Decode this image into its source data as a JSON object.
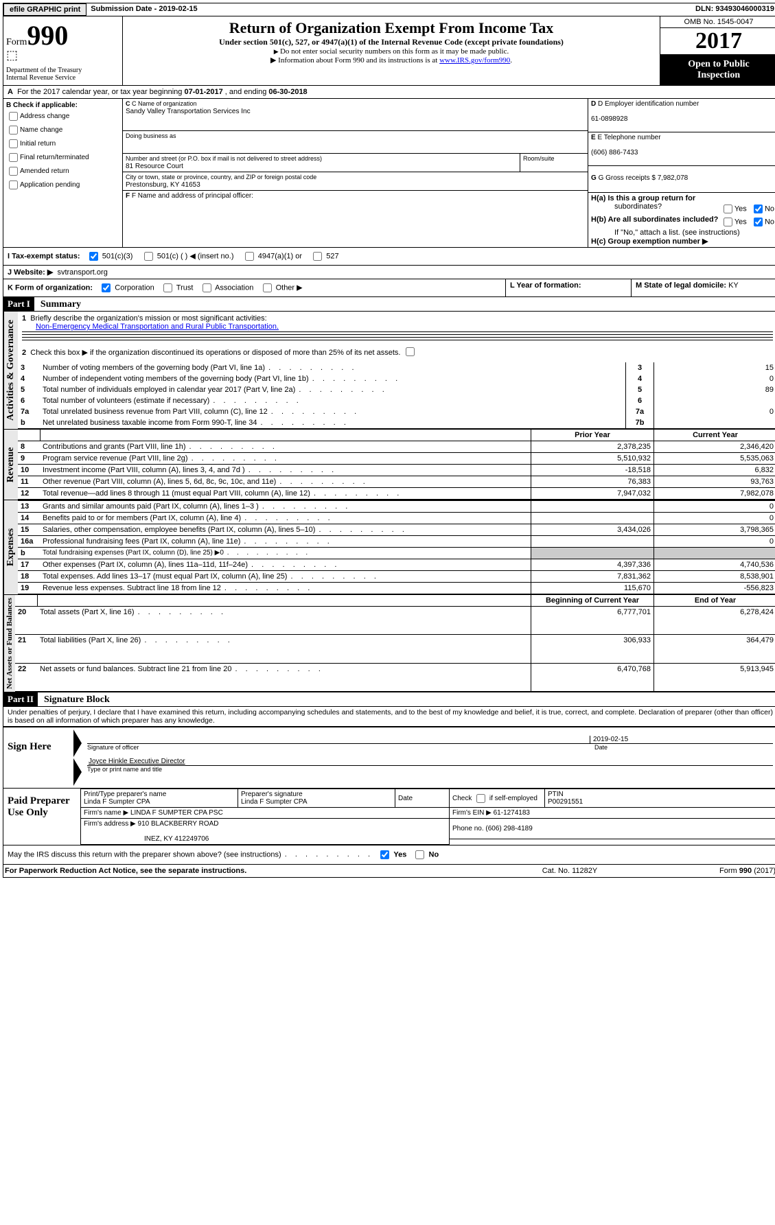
{
  "topbar": {
    "efile_btn": "efile GRAPHIC print",
    "sub_label": "Submission Date - ",
    "sub_date": "2019-02-15",
    "dln_label": "DLN: ",
    "dln": "93493046000319"
  },
  "header": {
    "form_word": "Form",
    "form_no": "990",
    "dept1": "Department of the Treasury",
    "dept2": "Internal Revenue Service",
    "title": "Return of Organization Exempt From Income Tax",
    "subtitle": "Under section 501(c), 527, or 4947(a)(1) of the Internal Revenue Code (except private foundations)",
    "note1": "Do not enter social security numbers on this form as it may be made public.",
    "note2_pre": "Information about Form 990 and its instructions is at ",
    "note2_link": "www.IRS.gov/form990",
    "omb": "OMB No. 1545-0047",
    "year": "2017",
    "inspect1": "Open to Public",
    "inspect2": "Inspection"
  },
  "rowA": {
    "label": "A",
    "text_pre": "For the 2017 calendar year, or tax year beginning ",
    "begin": "07-01-2017",
    "mid": " , and ending ",
    "end": "06-30-2018"
  },
  "colB": {
    "hdr": "B Check if applicable:",
    "items": [
      "Address change",
      "Name change",
      "Initial return",
      "Final return/terminated",
      "Amended return",
      "Application pending"
    ]
  },
  "colC": {
    "name_lbl": "C Name of organization",
    "name": "Sandy Valley Transportation Services Inc",
    "dba_lbl": "Doing business as",
    "dba": "",
    "street_lbl": "Number and street (or P.O. box if mail is not delivered to street address)",
    "room_lbl": "Room/suite",
    "street": "81 Resource Court",
    "city_lbl": "City or town, state or province, country, and ZIP or foreign postal code",
    "city": "Prestonsburg, KY  41653",
    "officer_lbl": "F Name and address of principal officer:"
  },
  "colD": {
    "ein_lbl": "D Employer identification number",
    "ein": "61-0898928",
    "tel_lbl": "E Telephone number",
    "tel": "(606) 886-7433",
    "gross_lbl": "G Gross receipts $ ",
    "gross": "7,982,078"
  },
  "rowH": {
    "ha": "H(a)  Is this a group return for",
    "ha2": "subordinates?",
    "hb": "H(b)  Are all subordinates included?",
    "hb_note": "If \"No,\" attach a list. (see instructions)",
    "hc": "H(c)  Group exemption number ▶",
    "yes": "Yes",
    "no": "No"
  },
  "rowI": {
    "lbl": "I  Tax-exempt status:",
    "o1": "501(c)(3)",
    "o2": "501(c) (  ) ◀ (insert no.)",
    "o3": "4947(a)(1) or",
    "o4": "527"
  },
  "rowJ": {
    "lbl": "J  Website: ▶",
    "val": "svtransport.org"
  },
  "rowK": {
    "lbl": "K Form of organization:",
    "opts": [
      "Corporation",
      "Trust",
      "Association",
      "Other ▶"
    ],
    "L_lbl": "L Year of formation:",
    "L_val": "",
    "M_lbl": "M State of legal domicile: ",
    "M_val": "KY"
  },
  "part1": {
    "hdr": "Part I",
    "title": "Summary",
    "line1_lbl": "Briefly describe the organization's mission or most significant activities:",
    "mission": "Non-Emergency Medical Transportation and Rural Public Transportation.",
    "line2": "Check this box ▶         if the organization discontinued its operations or disposed of more than 25% of its net assets.",
    "cols": [
      "Prior Year",
      "Current Year"
    ],
    "col_begin": "Beginning of Current Year",
    "col_end": "End of Year",
    "sections": {
      "gov": "Activities & Governance",
      "rev": "Revenue",
      "exp": "Expenses",
      "net": "Net Assets or Fund Balances"
    },
    "lines_top": [
      {
        "n": "3",
        "t": "Number of voting members of the governing body (Part VI, line 1a)",
        "box": "3",
        "v": "15"
      },
      {
        "n": "4",
        "t": "Number of independent voting members of the governing body (Part VI, line 1b)",
        "box": "4",
        "v": "0"
      },
      {
        "n": "5",
        "t": "Total number of individuals employed in calendar year 2017 (Part V, line 2a)",
        "box": "5",
        "v": "89"
      },
      {
        "n": "6",
        "t": "Total number of volunteers (estimate if necessary)",
        "box": "6",
        "v": ""
      },
      {
        "n": "7a",
        "t": "Total unrelated business revenue from Part VIII, column (C), line 12",
        "box": "7a",
        "v": "0"
      },
      {
        "n": "b",
        "t": "Net unrelated business taxable income from Form 990-T, line 34",
        "box": "7b",
        "v": ""
      }
    ],
    "lines_rev": [
      {
        "n": "8",
        "t": "Contributions and grants (Part VIII, line 1h)",
        "p": "2,378,235",
        "c": "2,346,420"
      },
      {
        "n": "9",
        "t": "Program service revenue (Part VIII, line 2g)",
        "p": "5,510,932",
        "c": "5,535,063"
      },
      {
        "n": "10",
        "t": "Investment income (Part VIII, column (A), lines 3, 4, and 7d )",
        "p": "-18,518",
        "c": "6,832"
      },
      {
        "n": "11",
        "t": "Other revenue (Part VIII, column (A), lines 5, 6d, 8c, 9c, 10c, and 11e)",
        "p": "76,383",
        "c": "93,763"
      },
      {
        "n": "12",
        "t": "Total revenue—add lines 8 through 11 (must equal Part VIII, column (A), line 12)",
        "p": "7,947,032",
        "c": "7,982,078"
      }
    ],
    "lines_exp": [
      {
        "n": "13",
        "t": "Grants and similar amounts paid (Part IX, column (A), lines 1–3 )",
        "p": "",
        "c": "0"
      },
      {
        "n": "14",
        "t": "Benefits paid to or for members (Part IX, column (A), line 4)",
        "p": "",
        "c": "0"
      },
      {
        "n": "15",
        "t": "Salaries, other compensation, employee benefits (Part IX, column (A), lines 5–10)",
        "p": "3,434,026",
        "c": "3,798,365"
      },
      {
        "n": "16a",
        "t": "Professional fundraising fees (Part IX, column (A), line 11e)",
        "p": "",
        "c": "0"
      },
      {
        "n": "b",
        "t": "Total fundraising expenses (Part IX, column (D), line 25) ▶0",
        "p": "grey",
        "c": "grey"
      },
      {
        "n": "17",
        "t": "Other expenses (Part IX, column (A), lines 11a–11d, 11f–24e)",
        "p": "4,397,336",
        "c": "4,740,536"
      },
      {
        "n": "18",
        "t": "Total expenses. Add lines 13–17 (must equal Part IX, column (A), line 25)",
        "p": "7,831,362",
        "c": "8,538,901"
      },
      {
        "n": "19",
        "t": "Revenue less expenses. Subtract line 18 from line 12",
        "p": "115,670",
        "c": "-556,823"
      }
    ],
    "lines_net": [
      {
        "n": "20",
        "t": "Total assets (Part X, line 16)",
        "p": "6,777,701",
        "c": "6,278,424"
      },
      {
        "n": "21",
        "t": "Total liabilities (Part X, line 26)",
        "p": "306,933",
        "c": "364,479"
      },
      {
        "n": "22",
        "t": "Net assets or fund balances. Subtract line 21 from line 20",
        "p": "6,470,768",
        "c": "5,913,945"
      }
    ]
  },
  "part2": {
    "hdr": "Part II",
    "title": "Signature Block",
    "perjury": "Under penalties of perjury, I declare that I have examined this return, including accompanying schedules and statements, and to the best of my knowledge and belief, it is true, correct, and complete. Declaration of preparer (other than officer) is based on all information of which preparer has any knowledge.",
    "sign_here": "Sign Here",
    "sig_lbl": "Signature of officer",
    "date_lbl": "Date",
    "sig_date": "2019-02-15",
    "name_lbl": "Type or print name and title",
    "name": "Joyce Hinkle Executive Director",
    "paid_lbl": "Paid Preparer Use Only",
    "p_name_lbl": "Print/Type preparer's name",
    "p_name": "Linda F Sumpter CPA",
    "p_sig_lbl": "Preparer's signature",
    "p_sig": "Linda F Sumpter CPA",
    "p_date_lbl": "Date",
    "p_selfemp": "Check       if self-employed",
    "ptin_lbl": "PTIN",
    "ptin": "P00291551",
    "firm_name_lbl": "Firm's name    ▶ ",
    "firm_name": "LINDA F SUMPTER CPA PSC",
    "firm_ein_lbl": "Firm's EIN ▶ ",
    "firm_ein": "61-1274183",
    "firm_addr_lbl": "Firm's address ▶",
    "firm_addr1": "910 BLACKBERRY ROAD",
    "firm_addr2": "INEZ, KY  412249706",
    "phone_lbl": "Phone no. ",
    "phone": "(606) 298-4189",
    "discuss": "May the IRS discuss this return with the preparer shown above? (see instructions)",
    "yes": "Yes",
    "no": "No"
  },
  "footer": {
    "left": "For Paperwork Reduction Act Notice, see the separate instructions.",
    "mid": "Cat. No. 11282Y",
    "right": "Form 990 (2017)"
  }
}
